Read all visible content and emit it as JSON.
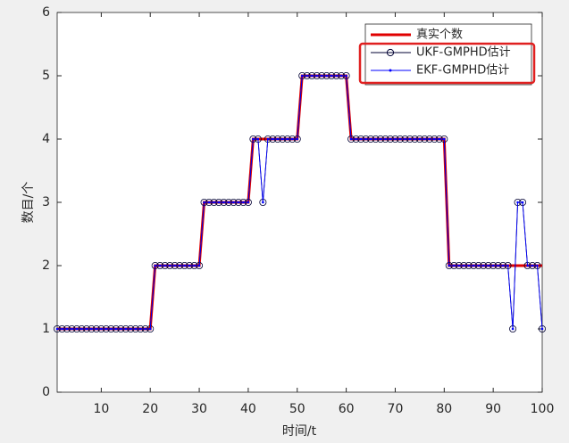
{
  "chart_data": {
    "type": "line",
    "xlabel": "时间/t",
    "ylabel": "数目/个",
    "x": [
      1,
      2,
      3,
      4,
      5,
      6,
      7,
      8,
      9,
      10,
      11,
      12,
      13,
      14,
      15,
      16,
      17,
      18,
      19,
      20,
      21,
      22,
      23,
      24,
      25,
      26,
      27,
      28,
      29,
      30,
      31,
      32,
      33,
      34,
      35,
      36,
      37,
      38,
      39,
      40,
      41,
      42,
      43,
      44,
      45,
      46,
      47,
      48,
      49,
      50,
      51,
      52,
      53,
      54,
      55,
      56,
      57,
      58,
      59,
      60,
      61,
      62,
      63,
      64,
      65,
      66,
      67,
      68,
      69,
      70,
      71,
      72,
      73,
      74,
      75,
      76,
      77,
      78,
      79,
      80,
      81,
      82,
      83,
      84,
      85,
      86,
      87,
      88,
      89,
      90,
      91,
      92,
      93,
      94,
      95,
      96,
      97,
      98,
      99,
      100
    ],
    "series": [
      {
        "name": "真实个数",
        "color": "#e00000",
        "marker": "none",
        "values": [
          1,
          1,
          1,
          1,
          1,
          1,
          1,
          1,
          1,
          1,
          1,
          1,
          1,
          1,
          1,
          1,
          1,
          1,
          1,
          1,
          2,
          2,
          2,
          2,
          2,
          2,
          2,
          2,
          2,
          2,
          3,
          3,
          3,
          3,
          3,
          3,
          3,
          3,
          3,
          3,
          4,
          4,
          4,
          4,
          4,
          4,
          4,
          4,
          4,
          4,
          5,
          5,
          5,
          5,
          5,
          5,
          5,
          5,
          5,
          5,
          4,
          4,
          4,
          4,
          4,
          4,
          4,
          4,
          4,
          4,
          4,
          4,
          4,
          4,
          4,
          4,
          4,
          4,
          4,
          4,
          2,
          2,
          2,
          2,
          2,
          2,
          2,
          2,
          2,
          2,
          2,
          2,
          2,
          2,
          2,
          2,
          2,
          2,
          2,
          2
        ]
      },
      {
        "name": "UKF-GMPHD估计",
        "color": "#000033",
        "marker": "circle",
        "values": [
          1,
          1,
          1,
          1,
          1,
          1,
          1,
          1,
          1,
          1,
          1,
          1,
          1,
          1,
          1,
          1,
          1,
          1,
          1,
          1,
          2,
          2,
          2,
          2,
          2,
          2,
          2,
          2,
          2,
          2,
          3,
          3,
          3,
          3,
          3,
          3,
          3,
          3,
          3,
          3,
          4,
          4,
          3,
          4,
          4,
          4,
          4,
          4,
          4,
          4,
          5,
          5,
          5,
          5,
          5,
          5,
          5,
          5,
          5,
          5,
          4,
          4,
          4,
          4,
          4,
          4,
          4,
          4,
          4,
          4,
          4,
          4,
          4,
          4,
          4,
          4,
          4,
          4,
          4,
          4,
          2,
          2,
          2,
          2,
          2,
          2,
          2,
          2,
          2,
          2,
          2,
          2,
          2,
          1,
          3,
          3,
          2,
          2,
          2,
          1
        ]
      },
      {
        "name": "EKF-GMPHD估计",
        "color": "#0000ff",
        "marker": "dot",
        "values": [
          1,
          1,
          1,
          1,
          1,
          1,
          1,
          1,
          1,
          1,
          1,
          1,
          1,
          1,
          1,
          1,
          1,
          1,
          1,
          1,
          2,
          2,
          2,
          2,
          2,
          2,
          2,
          2,
          2,
          2,
          3,
          3,
          3,
          3,
          3,
          3,
          3,
          3,
          3,
          3,
          4,
          4,
          3,
          4,
          4,
          4,
          4,
          4,
          4,
          4,
          5,
          5,
          5,
          5,
          5,
          5,
          5,
          5,
          5,
          5,
          4,
          4,
          4,
          4,
          4,
          4,
          4,
          4,
          4,
          4,
          4,
          4,
          4,
          4,
          4,
          4,
          4,
          4,
          4,
          4,
          2,
          2,
          2,
          2,
          2,
          2,
          2,
          2,
          2,
          2,
          2,
          2,
          2,
          1,
          3,
          3,
          2,
          2,
          2,
          1
        ]
      }
    ],
    "xlim": [
      1,
      100
    ],
    "xticks": [
      10,
      20,
      30,
      40,
      50,
      60,
      70,
      80,
      90,
      100
    ],
    "ylim": [
      0,
      6
    ],
    "yticks": [
      0,
      1,
      2,
      3,
      4,
      5,
      6
    ]
  }
}
